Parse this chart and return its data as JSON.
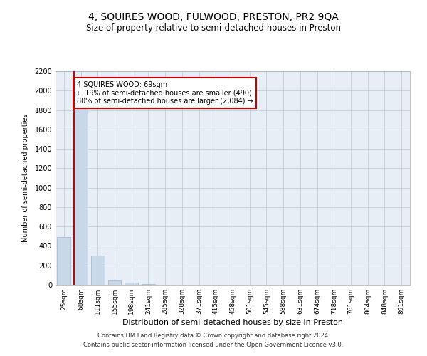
{
  "title1": "4, SQUIRES WOOD, FULWOOD, PRESTON, PR2 9QA",
  "title2": "Size of property relative to semi-detached houses in Preston",
  "xlabel": "Distribution of semi-detached houses by size in Preston",
  "ylabel": "Number of semi-detached properties",
  "footnote1": "Contains HM Land Registry data © Crown copyright and database right 2024.",
  "footnote2": "Contains public sector information licensed under the Open Government Licence v3.0.",
  "categories": [
    "25sqm",
    "68sqm",
    "111sqm",
    "155sqm",
    "198sqm",
    "241sqm",
    "285sqm",
    "328sqm",
    "371sqm",
    "415sqm",
    "458sqm",
    "501sqm",
    "545sqm",
    "588sqm",
    "631sqm",
    "674sqm",
    "718sqm",
    "761sqm",
    "804sqm",
    "848sqm",
    "891sqm"
  ],
  "values": [
    490,
    1840,
    300,
    50,
    25,
    10,
    0,
    0,
    0,
    0,
    0,
    0,
    0,
    0,
    0,
    0,
    0,
    0,
    0,
    0,
    0
  ],
  "bar_color": "#c8d8e8",
  "bar_edgecolor": "#a0b8cc",
  "highlight_line_color": "#cc0000",
  "annotation_text": "4 SQUIRES WOOD: 69sqm\n← 19% of semi-detached houses are smaller (490)\n80% of semi-detached houses are larger (2,084) →",
  "annotation_box_color": "#ffffff",
  "annotation_box_edgecolor": "#cc0000",
  "ylim": [
    0,
    2200
  ],
  "yticks": [
    0,
    200,
    400,
    600,
    800,
    1000,
    1200,
    1400,
    1600,
    1800,
    2000,
    2200
  ],
  "grid_color": "#c0c8d8",
  "bg_color": "#e8eef5",
  "property_bar_index": 0
}
